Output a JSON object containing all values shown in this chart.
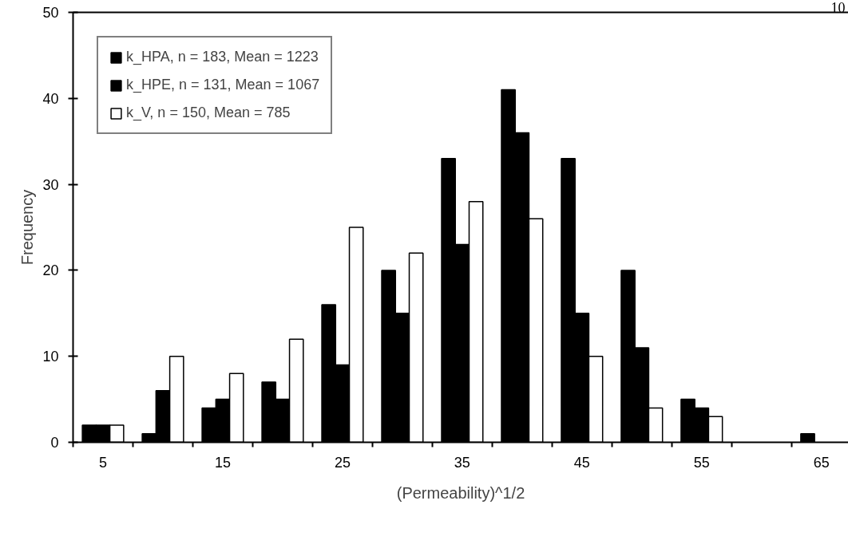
{
  "chart_data": {
    "type": "bar",
    "categories": [
      "5",
      null,
      "15",
      null,
      "25",
      null,
      "35",
      null,
      "45",
      null,
      "55",
      null,
      "65"
    ],
    "series": [
      {
        "name": "k_HPA, n = 183, Mean = 1223",
        "color": "#000000",
        "values": [
          2,
          1,
          4,
          7,
          16,
          20,
          33,
          41,
          33,
          20,
          5,
          0,
          1
        ]
      },
      {
        "name": "k_HPE, n = 131, Mean = 1067",
        "color": "#000000",
        "values": [
          2,
          6,
          5,
          5,
          9,
          15,
          23,
          36,
          15,
          11,
          4,
          0,
          0
        ]
      },
      {
        "name": "k_V, n = 150, Mean = 785",
        "color": "#ffffff",
        "values": [
          2,
          10,
          8,
          12,
          25,
          22,
          28,
          26,
          10,
          4,
          3,
          0,
          0
        ]
      }
    ],
    "xlabel": "(Permeability)^1/2",
    "ylabel": "Frequency",
    "ylim": [
      0,
      50
    ],
    "yticks": [
      0,
      10,
      20,
      30,
      40,
      50
    ],
    "annotations": [
      "10"
    ],
    "grid": false,
    "legend": "top left"
  }
}
